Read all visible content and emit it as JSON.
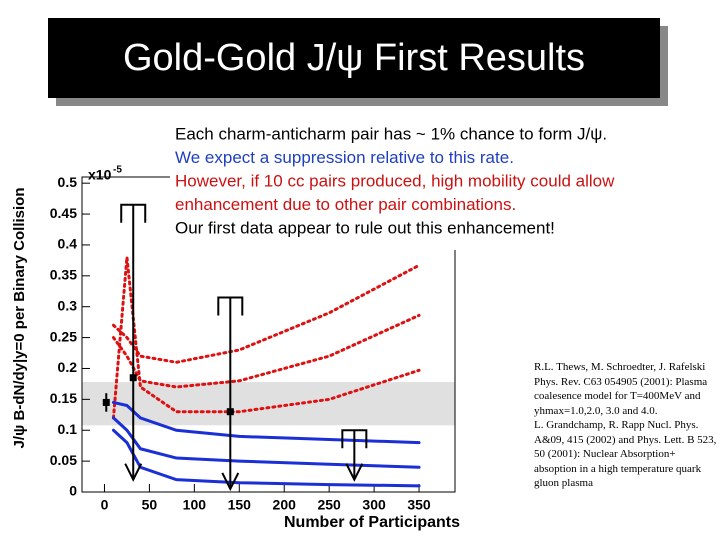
{
  "title": "Gold-Gold J/ψ First Results",
  "bullets": [
    {
      "text": "Each charm-anticharm pair has ~ 1% chance to form J/ψ.",
      "color": "#000000"
    },
    {
      "text": "We expect a suppression relative to this rate.",
      "color": "#1f3fbf"
    },
    {
      "text": "However, if 10 cc pairs produced, high mobility could allow",
      "color": "#cc1111"
    },
    {
      "text": "enhancement due to other pair combinations.",
      "color": "#cc1111"
    },
    {
      "text": "Our first data appear to rule out this enhancement!",
      "color": "#000000"
    }
  ],
  "references": [
    "R.L. Thews, M. Schroedter, J. Rafelski Phys. Rev. C63 054905 (2001): Plasma coalesence model for T=400MeV and yhmax=1.0,2.0, 3.0 and 4.0.",
    "L. Grandchamp, R. Rapp Nucl. Phys. A&09, 415 (2002) and Phys. Lett. B 523, 50 (2001): Nuclear Absorption+ absoption in a high temperature quark gluon plasma"
  ],
  "chart_data": {
    "type": "line",
    "x_label": "Number of Participants",
    "y_label": "J/ψ  B-dN/dy|y=0 per Binary Collision",
    "y_multiplier": {
      "base": "x10",
      "exponent": "-5"
    },
    "xlim": [
      -25,
      390
    ],
    "ylim": [
      0,
      0.51
    ],
    "xticks": [
      0,
      50,
      100,
      150,
      200,
      250,
      300,
      350
    ],
    "yticks": [
      0,
      0.05,
      0.1,
      0.15,
      0.2,
      0.25,
      0.3,
      0.35,
      0.4,
      0.45,
      0.5
    ],
    "band": {
      "values": [
        0.108,
        0.178
      ],
      "color": "#e0e0e0"
    },
    "x": [
      10,
      25,
      40,
      80,
      150,
      250,
      350
    ],
    "series": [
      {
        "color": "#dd1111",
        "style": "dotted",
        "values": [
          0.27,
          0.25,
          0.22,
          0.21,
          0.23,
          0.29,
          0.367
        ]
      },
      {
        "color": "#dd1111",
        "style": "dotted",
        "values": [
          0.25,
          0.22,
          0.18,
          0.17,
          0.18,
          0.22,
          0.286
        ]
      },
      {
        "color": "#dd1111",
        "style": "dotted",
        "values": [
          0.12,
          0.38,
          0.17,
          0.13,
          0.13,
          0.15,
          0.197
        ]
      },
      {
        "color": "#1a2fd6",
        "style": "solid",
        "values": [
          0.145,
          0.14,
          0.12,
          0.1,
          0.09,
          0.085,
          0.08
        ]
      },
      {
        "color": "#1a2fd6",
        "style": "solid",
        "values": [
          0.12,
          0.1,
          0.07,
          0.055,
          0.05,
          0.045,
          0.04
        ]
      },
      {
        "color": "#1a2fd6",
        "style": "solid",
        "values": [
          0.1,
          0.08,
          0.04,
          0.02,
          0.015,
          0.012,
          0.01
        ]
      }
    ],
    "points": {
      "x": [
        2,
        32,
        140
      ],
      "values": [
        0.145,
        0.185,
        0.13
      ],
      "upper": [
        0.16,
        0.465,
        0.315
      ],
      "lower": [
        0.13,
        0.02,
        0.005
      ],
      "arrow": [
        false,
        true,
        true
      ]
    },
    "limits": {
      "x": [
        278
      ],
      "upper": [
        0.1
      ],
      "lower": [
        0.02
      ]
    }
  }
}
